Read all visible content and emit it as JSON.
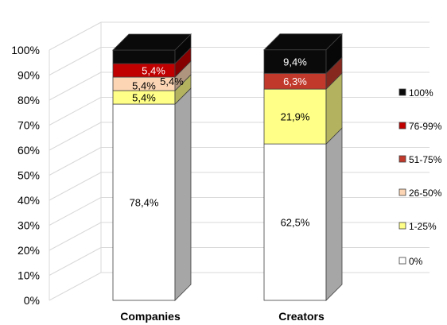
{
  "chart_data": {
    "type": "bar",
    "stacked": true,
    "three_d": true,
    "categories": [
      "Companies",
      "Creators"
    ],
    "series": [
      {
        "name": "0%",
        "values": [
          78.4,
          62.5
        ],
        "color": "#ffffff"
      },
      {
        "name": "1-25%",
        "values": [
          5.4,
          21.9
        ],
        "color": "#ffff88"
      },
      {
        "name": "26-50%",
        "values": [
          5.4,
          0
        ],
        "color": "#fcd5b4"
      },
      {
        "name": "51-75%",
        "values": [
          0,
          6.3
        ],
        "color": "#c0392b"
      },
      {
        "name": "76-99%",
        "values": [
          5.4,
          0
        ],
        "color": "#c00000"
      },
      {
        "name": "100%",
        "values": [
          5.4,
          9.4
        ],
        "color": "#0a0a0a"
      }
    ],
    "data_labels": [
      {
        "category": "Companies",
        "series": "0%",
        "text": "78,4%"
      },
      {
        "category": "Companies",
        "series": "1-25%",
        "text": "5,4%"
      },
      {
        "category": "Companies",
        "series": "26-50%",
        "text": "5,4%"
      },
      {
        "category": "Companies",
        "series": "76-99%",
        "text": "5,4%"
      },
      {
        "category": "Companies",
        "series": "26-50%",
        "text": "5,4%",
        "side": true
      },
      {
        "category": "Creators",
        "series": "0%",
        "text": "62,5%"
      },
      {
        "category": "Creators",
        "series": "1-25%",
        "text": "21,9%"
      },
      {
        "category": "Creators",
        "series": "51-75%",
        "text": "6,3%"
      },
      {
        "category": "Creators",
        "series": "100%",
        "text": "9,4%"
      }
    ],
    "y_ticks": [
      "0%",
      "10%",
      "20%",
      "30%",
      "40%",
      "50%",
      "60%",
      "70%",
      "80%",
      "90%",
      "100%"
    ],
    "ylim": [
      0,
      100
    ],
    "grid": true,
    "legend_position": "right",
    "legend_order": [
      "100%",
      "76-99%",
      "51-75%",
      "26-50%",
      "1-25%",
      "0%"
    ],
    "title": "",
    "xlabel": "",
    "ylabel": ""
  }
}
